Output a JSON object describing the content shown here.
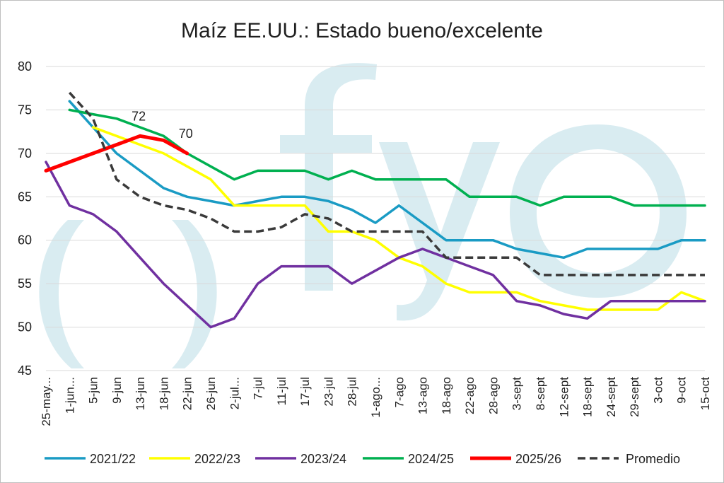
{
  "chart_data": {
    "type": "line",
    "title": "Maíz EE.UU.: Estado bueno/excelente",
    "xlabel": "",
    "ylabel": "",
    "ylim": [
      45,
      80
    ],
    "yticks": [
      45,
      50,
      55,
      60,
      65,
      70,
      75,
      80
    ],
    "grid": true,
    "legend_position": "bottom",
    "categories": [
      "25-may...",
      "1-jun...",
      "5-jun",
      "9-jun",
      "13-jun",
      "18-jun",
      "22-jun",
      "26-jun",
      "2-jul...",
      "7-jul",
      "11-jul",
      "17-jul",
      "23-jul",
      "28-jul",
      "1-ago...",
      "7-ago",
      "13-ago",
      "18-ago",
      "22-ago",
      "28-ago",
      "3-sept",
      "8-sept",
      "12-sept",
      "18-sept",
      "24-sept",
      "29-sept",
      "3-oct",
      "9-oct",
      "15-oct"
    ],
    "series": [
      {
        "name": "2021/22",
        "color": "#1a9bc4",
        "dashed": false,
        "values": [
          null,
          76,
          73,
          70,
          68,
          66,
          65,
          64.5,
          64,
          64.5,
          65,
          65,
          64.5,
          63.5,
          62,
          64,
          62,
          60,
          60,
          60,
          59,
          58.5,
          58,
          59,
          59,
          59,
          59,
          60,
          60
        ]
      },
      {
        "name": "2022/23",
        "color": "#ffff00",
        "dashed": false,
        "values": [
          null,
          null,
          73,
          72,
          71,
          70,
          68.5,
          67,
          64,
          64,
          64,
          64,
          61,
          61,
          60,
          58,
          57,
          55,
          54,
          54,
          54,
          53,
          52.5,
          52,
          52,
          52,
          52,
          54,
          53
        ]
      },
      {
        "name": "2023/24",
        "color": "#7030a0",
        "dashed": false,
        "values": [
          69,
          64,
          63,
          61,
          58,
          55,
          52.5,
          50,
          51,
          55,
          57,
          57,
          57,
          55,
          56.5,
          58,
          59,
          58,
          57,
          56,
          53,
          52.5,
          51.5,
          51,
          53,
          53,
          53,
          53,
          53
        ]
      },
      {
        "name": "2024/25",
        "color": "#00b050",
        "dashed": false,
        "values": [
          null,
          75,
          74.5,
          74,
          73,
          72,
          70,
          68.5,
          67,
          68,
          68,
          68,
          67,
          68,
          67,
          67,
          67,
          67,
          65,
          65,
          65,
          64,
          65,
          65,
          65,
          64,
          64,
          64,
          64
        ]
      },
      {
        "name": "2025/26",
        "color": "#ff0000",
        "dashed": false,
        "values": [
          68,
          69,
          70,
          71,
          72,
          71.5,
          70,
          null,
          null,
          null,
          null,
          null,
          null,
          null,
          null,
          null,
          null,
          null,
          null,
          null,
          null,
          null,
          null,
          null,
          null,
          null,
          null,
          null,
          null
        ]
      },
      {
        "name": "Promedio",
        "color": "#3a3a3a",
        "dashed": true,
        "values": [
          null,
          77,
          74,
          67,
          65,
          64,
          63.5,
          62.5,
          61,
          61,
          61.5,
          63,
          62.5,
          61,
          61,
          61,
          61,
          58,
          58,
          58,
          58,
          56,
          56,
          56,
          56,
          56,
          56,
          56,
          56
        ]
      }
    ],
    "annotations": [
      {
        "text": "72",
        "x_index": 4,
        "y": 72
      },
      {
        "text": "70",
        "x_index": 6,
        "y": 70
      }
    ]
  },
  "watermark": {
    "text": "()fyo",
    "color": "#d9ecf1"
  }
}
